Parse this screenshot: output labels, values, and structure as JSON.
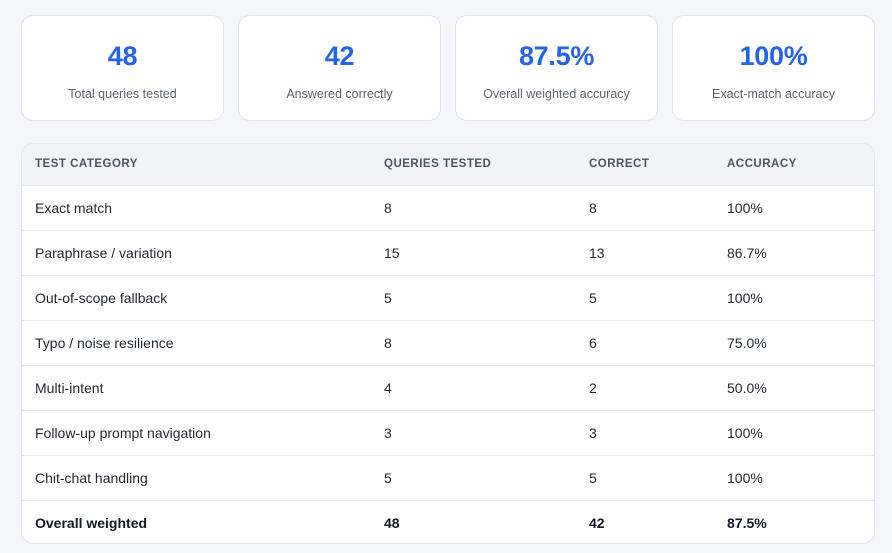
{
  "stats": [
    {
      "value": "48",
      "label": "Total queries tested"
    },
    {
      "value": "42",
      "label": "Answered correctly"
    },
    {
      "value": "87.5%",
      "label": "Overall weighted accuracy"
    },
    {
      "value": "100%",
      "label": "Exact-match accuracy"
    }
  ],
  "table": {
    "headers": [
      "TEST CATEGORY",
      "QUERIES TESTED",
      "CORRECT",
      "ACCURACY"
    ],
    "rows": [
      [
        "Exact match",
        "8",
        "8",
        "100%"
      ],
      [
        "Paraphrase / variation",
        "15",
        "13",
        "86.7%"
      ],
      [
        "Out-of-scope fallback",
        "5",
        "5",
        "100%"
      ],
      [
        "Typo / noise resilience",
        "8",
        "6",
        "75.0%"
      ],
      [
        "Multi-intent",
        "4",
        "2",
        "50.0%"
      ],
      [
        "Follow-up prompt navigation",
        "3",
        "3",
        "100%"
      ],
      [
        "Chit-chat handling",
        "5",
        "5",
        "100%"
      ],
      [
        "Overall weighted",
        "48",
        "42",
        "87.5%"
      ]
    ]
  },
  "colors": {
    "accent": "#2563eb",
    "page_background": "#f5f6f9",
    "header_background": "#f1f3f7"
  }
}
